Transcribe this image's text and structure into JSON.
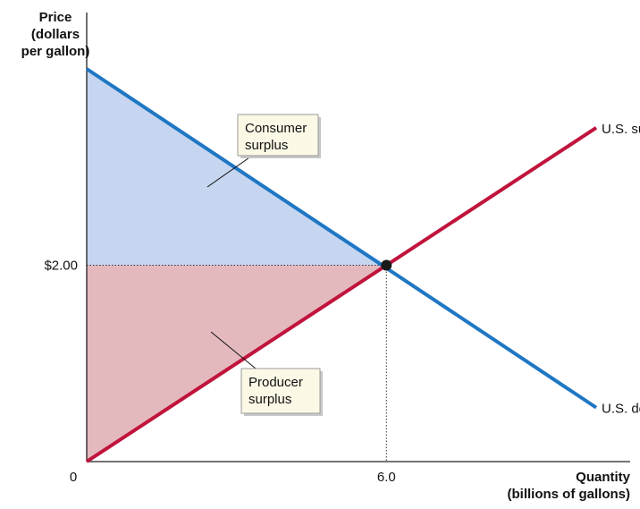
{
  "chart_data": {
    "type": "line",
    "xlabel": [
      "Quantity",
      "(billions of gallons)"
    ],
    "ylabel": [
      "Price",
      "(dollars",
      "per gallon)"
    ],
    "x_ticks": [
      {
        "value": 0,
        "label": "0"
      },
      {
        "value": 6.0,
        "label": "6.0"
      }
    ],
    "y_ticks": [
      {
        "value": 2.0,
        "label": "$2.00"
      }
    ],
    "xlim": [
      0,
      10.88
    ],
    "ylim": [
      0,
      4.0
    ],
    "grid": false,
    "series": [
      {
        "name": "U.S. demand",
        "color": "#1f77c4",
        "x": [
          0,
          10.2
        ],
        "y": [
          4.0,
          0.55
        ]
      },
      {
        "name": "U.S. supply",
        "color": "#c0143c",
        "x": [
          0,
          10.2
        ],
        "y": [
          0.0,
          3.4
        ]
      }
    ],
    "equilibrium": {
      "x": 6.0,
      "y": 2.0
    },
    "areas": [
      {
        "label": [
          "Consumer",
          "surplus"
        ],
        "fill": "#c6d6f0"
      },
      {
        "label": [
          "Producer",
          "surplus"
        ],
        "fill": "#e4b9be"
      }
    ]
  }
}
